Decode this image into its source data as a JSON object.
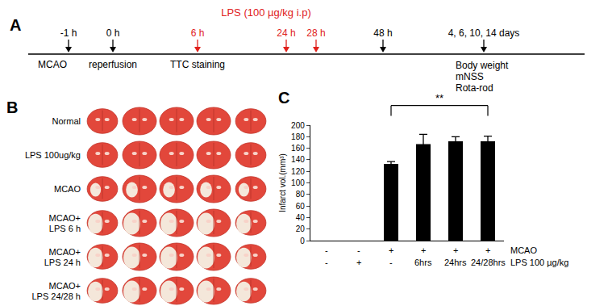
{
  "timeline": {
    "panel": "A",
    "lps_label": "LPS (100 µg/kg i.p)",
    "events": [
      {
        "time": "-1 h",
        "labels": [
          "MCAO"
        ],
        "lps": false
      },
      {
        "time": "0 h",
        "labels": [
          "reperfusion"
        ],
        "lps": false
      },
      {
        "time": "6 h",
        "labels": [
          "TTC staining"
        ],
        "lps": true
      },
      {
        "time": "24 h",
        "labels": [],
        "lps": true
      },
      {
        "time": "28 h",
        "labels": [],
        "lps": true
      },
      {
        "time": "48 h",
        "labels": [],
        "lps": false
      },
      {
        "time": "4, 6, 10, 14 days",
        "labels": [
          "Body weight",
          "mNSS",
          "Rota-rod"
        ],
        "lps": false
      }
    ]
  },
  "images": {
    "panel": "B",
    "slices_per_row": 5,
    "rows": [
      {
        "label": [
          "Normal"
        ],
        "infarct": false
      },
      {
        "label": [
          "LPS 100ug/kg"
        ],
        "infarct": false
      },
      {
        "label": [
          "MCAO"
        ],
        "infarct": true
      },
      {
        "label": [
          "MCAO+",
          "LPS 6 h"
        ],
        "infarct": true
      },
      {
        "label": [
          "MCAO+",
          "LPS 24 h"
        ],
        "infarct": true
      },
      {
        "label": [
          "MCAO+",
          "LPS 24/28 h"
        ],
        "infarct": true
      }
    ]
  },
  "chart_data": {
    "panel": "C",
    "type": "bar",
    "y_label": "Infarct vol.(mm³)",
    "categories": [
      null,
      null,
      null,
      null,
      null,
      null
    ],
    "values": [
      null,
      null,
      133,
      167,
      172,
      172
    ],
    "errors": [
      null,
      null,
      4,
      17,
      8,
      9
    ],
    "color": "#000000",
    "ylim": [
      0,
      200
    ],
    "yticks": [
      0,
      20,
      40,
      60,
      80,
      100,
      120,
      140,
      160,
      180,
      200
    ],
    "tick_labels": "y",
    "condition_rows": [
      {
        "label": "MCAO",
        "values": [
          "-",
          "-",
          "+",
          "+",
          "+",
          "+"
        ]
      },
      {
        "label": "LPS 100 µg/kg",
        "values": [
          "-",
          "+",
          "-",
          "6hrs",
          "24hrs",
          "24/28hrs"
        ]
      }
    ],
    "annotations": [
      {
        "text": "**",
        "from": 2,
        "to": 5
      }
    ]
  }
}
